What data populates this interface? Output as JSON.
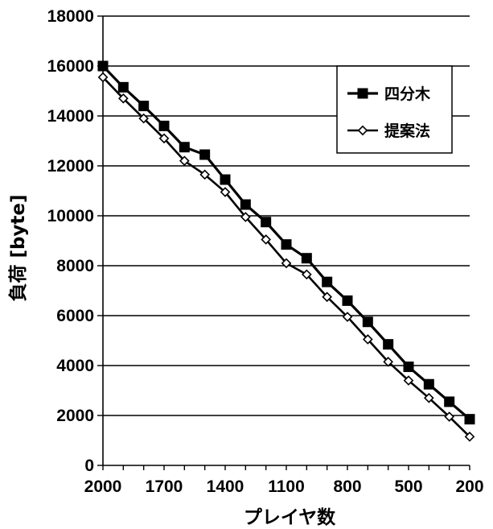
{
  "chart_data": {
    "type": "line",
    "xlabel": "プレイヤ数",
    "ylabel": "負荷 [byte]",
    "x": [
      2000,
      1900,
      1800,
      1700,
      1600,
      1500,
      1400,
      1300,
      1200,
      1100,
      1000,
      900,
      800,
      700,
      600,
      500,
      400,
      300,
      200
    ],
    "x_ticks": [
      2000,
      1700,
      1400,
      1100,
      800,
      500,
      200
    ],
    "xlim": [
      2000,
      200
    ],
    "x_reversed": true,
    "ylim": [
      0,
      18000
    ],
    "y_ticks": [
      0,
      2000,
      4000,
      6000,
      8000,
      10000,
      12000,
      14000,
      16000,
      18000
    ],
    "grid": "horizontal",
    "legend_position": "top-right",
    "series": [
      {
        "name": "四分木",
        "marker": "square",
        "values": [
          16000,
          15150,
          14400,
          13600,
          12750,
          12450,
          11450,
          10450,
          9750,
          8850,
          8300,
          7350,
          6600,
          5750,
          4850,
          3950,
          3250,
          2550,
          1850
        ]
      },
      {
        "name": "提案法",
        "marker": "diamond",
        "values": [
          15550,
          14700,
          13900,
          13100,
          12200,
          11650,
          10950,
          9950,
          9050,
          8100,
          7650,
          6750,
          5950,
          5050,
          4150,
          3400,
          2700,
          1950,
          1150
        ]
      }
    ]
  }
}
